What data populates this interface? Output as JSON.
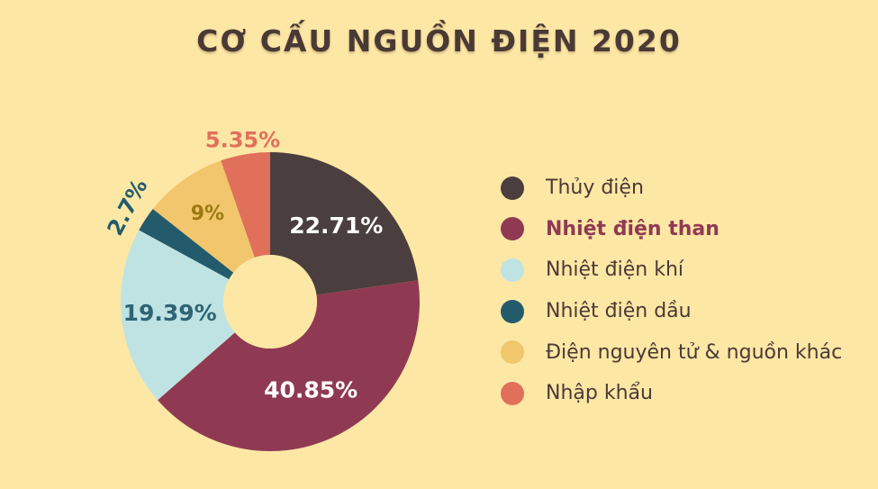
{
  "chart_data": {
    "type": "pie",
    "variant": "donut",
    "title": "CƠ CẤU NGUỒN ĐIỆN 2020",
    "legend_position": "right",
    "slices": [
      {
        "name": "Thủy điện",
        "value": 22.71,
        "label": "22.71%",
        "color": "#4a3f3e",
        "label_color": "#ffffff",
        "highlight": false
      },
      {
        "name": "Nhiệt điện than",
        "value": 40.85,
        "label": "40.85%",
        "color": "#8f3a52",
        "label_color": "#ffffff",
        "highlight": true
      },
      {
        "name": "Nhiệt điện khí",
        "value": 19.39,
        "label": "19.39%",
        "color": "#bfe3e3",
        "label_color": "#2f6475",
        "highlight": false
      },
      {
        "name": "Nhiệt điện dầu",
        "value": 2.7,
        "label": "2.7%",
        "color": "#235b6c",
        "label_color": "#235b6c",
        "highlight": false
      },
      {
        "name": "Điện nguyên tử & nguồn khác",
        "value": 9,
        "label": "9%",
        "color": "#f2c66c",
        "label_color": "#9a7a13",
        "highlight": false
      },
      {
        "name": "Nhập khẩu",
        "value": 5.35,
        "label": "5.35%",
        "color": "#e0705a",
        "label_color": "#e0705a",
        "highlight": false
      }
    ]
  }
}
